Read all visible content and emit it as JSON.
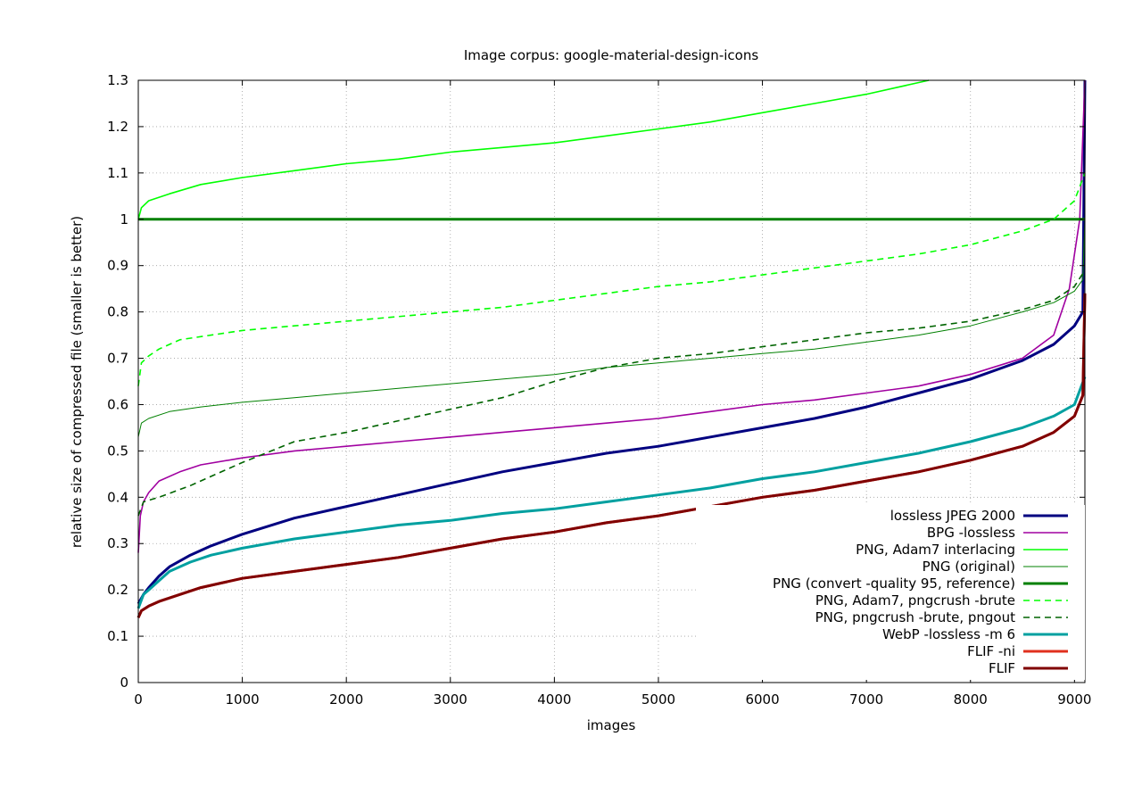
{
  "chart_data": {
    "type": "line",
    "title": "Image corpus: google-material-design-icons",
    "xlabel": "images",
    "ylabel": "relative size of compressed file (smaller is better)",
    "xlim": [
      0,
      9100
    ],
    "ylim": [
      0,
      1.3
    ],
    "xticks": [
      0,
      1000,
      2000,
      3000,
      4000,
      5000,
      6000,
      7000,
      8000,
      9000
    ],
    "yticks": [
      0,
      0.1,
      0.2,
      0.3,
      0.4,
      0.5,
      0.6,
      0.7,
      0.8,
      0.9,
      1,
      1.1,
      1.2,
      1.3
    ],
    "grid": true,
    "legend_position": "bottom-right",
    "series": [
      {
        "name": "lossless JPEG 2000",
        "color": "#000080",
        "style": "solid",
        "weight": "thick",
        "points": [
          [
            0,
            0.17
          ],
          [
            50,
            0.19
          ],
          [
            100,
            0.205
          ],
          [
            200,
            0.23
          ],
          [
            300,
            0.25
          ],
          [
            500,
            0.275
          ],
          [
            700,
            0.295
          ],
          [
            1000,
            0.32
          ],
          [
            1500,
            0.355
          ],
          [
            2000,
            0.38
          ],
          [
            2500,
            0.405
          ],
          [
            3000,
            0.43
          ],
          [
            3500,
            0.455
          ],
          [
            4000,
            0.475
          ],
          [
            4500,
            0.495
          ],
          [
            5000,
            0.51
          ],
          [
            5500,
            0.53
          ],
          [
            6000,
            0.55
          ],
          [
            6500,
            0.57
          ],
          [
            7000,
            0.595
          ],
          [
            7500,
            0.625
          ],
          [
            8000,
            0.655
          ],
          [
            8500,
            0.695
          ],
          [
            8800,
            0.73
          ],
          [
            9000,
            0.77
          ],
          [
            9080,
            0.8
          ],
          [
            9100,
            1.3
          ]
        ]
      },
      {
        "name": "BPG -lossless",
        "color": "#a000a0",
        "style": "solid",
        "weight": "normal",
        "points": [
          [
            0,
            0.28
          ],
          [
            20,
            0.36
          ],
          [
            50,
            0.39
          ],
          [
            100,
            0.41
          ],
          [
            200,
            0.435
          ],
          [
            400,
            0.455
          ],
          [
            600,
            0.47
          ],
          [
            1000,
            0.485
          ],
          [
            1500,
            0.5
          ],
          [
            2000,
            0.51
          ],
          [
            2500,
            0.52
          ],
          [
            3000,
            0.53
          ],
          [
            3500,
            0.54
          ],
          [
            4000,
            0.55
          ],
          [
            4500,
            0.56
          ],
          [
            5000,
            0.57
          ],
          [
            5500,
            0.585
          ],
          [
            6000,
            0.6
          ],
          [
            6500,
            0.61
          ],
          [
            7000,
            0.625
          ],
          [
            7500,
            0.64
          ],
          [
            8000,
            0.665
          ],
          [
            8500,
            0.7
          ],
          [
            8800,
            0.75
          ],
          [
            8950,
            0.85
          ],
          [
            9050,
            1.0
          ],
          [
            9100,
            1.3
          ]
        ]
      },
      {
        "name": "PNG, Adam7 interlacing",
        "color": "#00ff00",
        "style": "solid",
        "weight": "normal",
        "points": [
          [
            0,
            1.0
          ],
          [
            30,
            1.025
          ],
          [
            100,
            1.04
          ],
          [
            300,
            1.055
          ],
          [
            600,
            1.075
          ],
          [
            1000,
            1.09
          ],
          [
            1500,
            1.105
          ],
          [
            2000,
            1.12
          ],
          [
            2500,
            1.13
          ],
          [
            3000,
            1.145
          ],
          [
            3500,
            1.155
          ],
          [
            4000,
            1.165
          ],
          [
            4500,
            1.18
          ],
          [
            5000,
            1.195
          ],
          [
            5500,
            1.21
          ],
          [
            6000,
            1.23
          ],
          [
            6500,
            1.25
          ],
          [
            7000,
            1.27
          ],
          [
            7600,
            1.3
          ]
        ]
      },
      {
        "name": "PNG (original)",
        "color": "#008000",
        "style": "solid",
        "weight": "thin",
        "points": [
          [
            0,
            0.53
          ],
          [
            30,
            0.56
          ],
          [
            100,
            0.57
          ],
          [
            300,
            0.585
          ],
          [
            600,
            0.595
          ],
          [
            1000,
            0.605
          ],
          [
            1500,
            0.615
          ],
          [
            2000,
            0.625
          ],
          [
            2500,
            0.635
          ],
          [
            3000,
            0.645
          ],
          [
            3500,
            0.655
          ],
          [
            4000,
            0.665
          ],
          [
            4500,
            0.68
          ],
          [
            5000,
            0.69
          ],
          [
            5500,
            0.7
          ],
          [
            6000,
            0.71
          ],
          [
            6500,
            0.72
          ],
          [
            7000,
            0.735
          ],
          [
            7500,
            0.75
          ],
          [
            8000,
            0.77
          ],
          [
            8500,
            0.8
          ],
          [
            8800,
            0.82
          ],
          [
            9000,
            0.845
          ],
          [
            9080,
            0.87
          ],
          [
            9100,
            1.0
          ]
        ]
      },
      {
        "name": "PNG (convert -quality 95, reference)",
        "color": "#008000",
        "style": "solid",
        "weight": "thick",
        "points": [
          [
            0,
            1.0
          ],
          [
            9100,
            1.0
          ]
        ]
      },
      {
        "name": "PNG, Adam7, pngcrush -brute",
        "color": "#00ff00",
        "style": "dashed",
        "weight": "normal",
        "points": [
          [
            0,
            0.64
          ],
          [
            30,
            0.69
          ],
          [
            100,
            0.705
          ],
          [
            200,
            0.72
          ],
          [
            400,
            0.74
          ],
          [
            700,
            0.75
          ],
          [
            1000,
            0.76
          ],
          [
            1500,
            0.77
          ],
          [
            2000,
            0.78
          ],
          [
            2500,
            0.79
          ],
          [
            3000,
            0.8
          ],
          [
            3500,
            0.81
          ],
          [
            4000,
            0.825
          ],
          [
            4500,
            0.84
          ],
          [
            5000,
            0.855
          ],
          [
            5500,
            0.865
          ],
          [
            6000,
            0.88
          ],
          [
            6500,
            0.895
          ],
          [
            7000,
            0.91
          ],
          [
            7500,
            0.925
          ],
          [
            8000,
            0.945
          ],
          [
            8500,
            0.975
          ],
          [
            8800,
            1.0
          ],
          [
            9000,
            1.04
          ],
          [
            9100,
            1.1
          ]
        ]
      },
      {
        "name": "PNG, pngcrush -brute, pngout",
        "color": "#006400",
        "style": "dashed",
        "weight": "normal",
        "points": [
          [
            0,
            0.36
          ],
          [
            50,
            0.39
          ],
          [
            200,
            0.4
          ],
          [
            500,
            0.425
          ],
          [
            700,
            0.445
          ],
          [
            1000,
            0.475
          ],
          [
            1500,
            0.52
          ],
          [
            2000,
            0.54
          ],
          [
            2500,
            0.565
          ],
          [
            3000,
            0.59
          ],
          [
            3500,
            0.615
          ],
          [
            4000,
            0.65
          ],
          [
            4500,
            0.68
          ],
          [
            5000,
            0.7
          ],
          [
            5500,
            0.71
          ],
          [
            6000,
            0.725
          ],
          [
            6500,
            0.74
          ],
          [
            7000,
            0.755
          ],
          [
            7500,
            0.765
          ],
          [
            8000,
            0.78
          ],
          [
            8500,
            0.805
          ],
          [
            8800,
            0.825
          ],
          [
            9000,
            0.855
          ],
          [
            9100,
            0.89
          ]
        ]
      },
      {
        "name": "WebP -lossless -m 6",
        "color": "#00a0a0",
        "style": "solid",
        "weight": "thick",
        "points": [
          [
            0,
            0.16
          ],
          [
            50,
            0.19
          ],
          [
            100,
            0.2
          ],
          [
            200,
            0.22
          ],
          [
            300,
            0.24
          ],
          [
            500,
            0.26
          ],
          [
            700,
            0.275
          ],
          [
            1000,
            0.29
          ],
          [
            1500,
            0.31
          ],
          [
            2000,
            0.325
          ],
          [
            2500,
            0.34
          ],
          [
            3000,
            0.35
          ],
          [
            3500,
            0.365
          ],
          [
            4000,
            0.375
          ],
          [
            4500,
            0.39
          ],
          [
            5000,
            0.405
          ],
          [
            5500,
            0.42
          ],
          [
            6000,
            0.44
          ],
          [
            6500,
            0.455
          ],
          [
            7000,
            0.475
          ],
          [
            7500,
            0.495
          ],
          [
            8000,
            0.52
          ],
          [
            8500,
            0.55
          ],
          [
            8800,
            0.575
          ],
          [
            9000,
            0.6
          ],
          [
            9100,
            0.66
          ]
        ]
      },
      {
        "name": "FLIF -ni",
        "color": "#e0301e",
        "style": "solid",
        "weight": "thick",
        "points": [
          [
            0,
            0.14
          ],
          [
            30,
            0.155
          ],
          [
            100,
            0.165
          ],
          [
            200,
            0.175
          ],
          [
            400,
            0.19
          ],
          [
            600,
            0.205
          ],
          [
            800,
            0.215
          ],
          [
            1000,
            0.225
          ],
          [
            1500,
            0.24
          ],
          [
            2000,
            0.255
          ],
          [
            2500,
            0.27
          ],
          [
            3000,
            0.29
          ],
          [
            3500,
            0.31
          ],
          [
            4000,
            0.325
          ],
          [
            4500,
            0.345
          ],
          [
            5000,
            0.36
          ],
          [
            5500,
            0.38
          ],
          [
            6000,
            0.4
          ],
          [
            6500,
            0.415
          ],
          [
            7000,
            0.435
          ],
          [
            7500,
            0.455
          ],
          [
            8000,
            0.48
          ],
          [
            8500,
            0.51
          ],
          [
            8800,
            0.54
          ],
          [
            9000,
            0.575
          ],
          [
            9080,
            0.62
          ],
          [
            9100,
            0.84
          ]
        ]
      },
      {
        "name": "FLIF",
        "color": "#800000",
        "style": "solid",
        "weight": "thick",
        "points": [
          [
            0,
            0.14
          ],
          [
            30,
            0.155
          ],
          [
            100,
            0.165
          ],
          [
            200,
            0.175
          ],
          [
            400,
            0.19
          ],
          [
            600,
            0.205
          ],
          [
            800,
            0.215
          ],
          [
            1000,
            0.225
          ],
          [
            1500,
            0.24
          ],
          [
            2000,
            0.255
          ],
          [
            2500,
            0.27
          ],
          [
            3000,
            0.29
          ],
          [
            3500,
            0.31
          ],
          [
            4000,
            0.325
          ],
          [
            4500,
            0.345
          ],
          [
            5000,
            0.36
          ],
          [
            5500,
            0.38
          ],
          [
            6000,
            0.4
          ],
          [
            6500,
            0.415
          ],
          [
            7000,
            0.435
          ],
          [
            7500,
            0.455
          ],
          [
            8000,
            0.48
          ],
          [
            8500,
            0.51
          ],
          [
            8800,
            0.54
          ],
          [
            9000,
            0.575
          ],
          [
            9080,
            0.62
          ],
          [
            9100,
            0.84
          ]
        ]
      }
    ]
  }
}
